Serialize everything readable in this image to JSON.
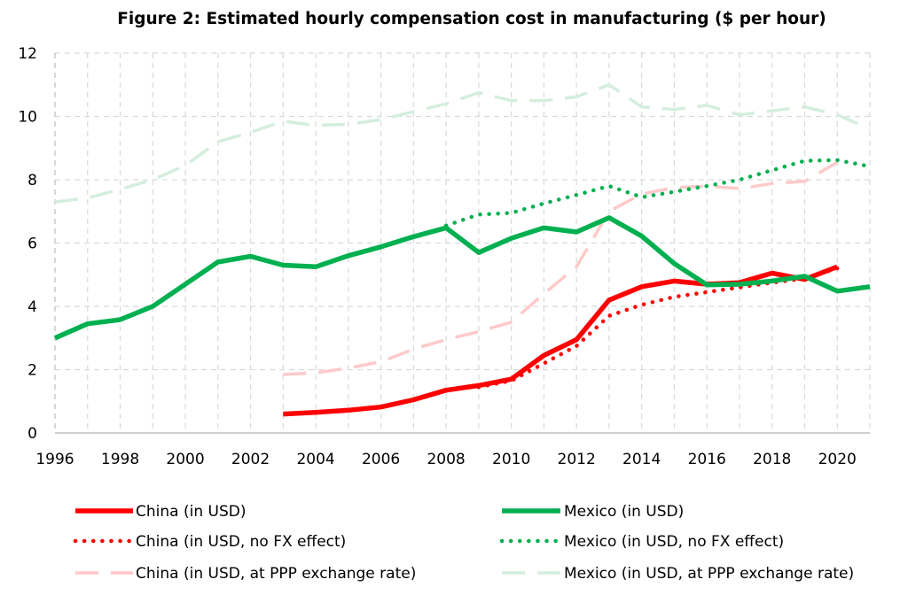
{
  "chart_data": {
    "type": "line",
    "title": "Figure 2: Estimated hourly compensation cost in manufacturing ($ per hour)",
    "xlabel": "",
    "ylabel": "",
    "xlim": [
      1996,
      2021
    ],
    "ylim": [
      0,
      12
    ],
    "x_ticks": [
      "1996",
      "1998",
      "2000",
      "2002",
      "2004",
      "2006",
      "2008",
      "2010",
      "2012",
      "2014",
      "2016",
      "2018",
      "2020"
    ],
    "y_ticks": [
      "0",
      "2",
      "4",
      "6",
      "8",
      "10",
      "12"
    ],
    "grid": true,
    "legend_position": "bottom",
    "series": [
      {
        "name": "China (in USD)",
        "color": "#ff0000",
        "style": "solid",
        "x": [
          2003,
          2004,
          2005,
          2006,
          2007,
          2008,
          2009,
          2010,
          2011,
          2012,
          2013,
          2014,
          2015,
          2016,
          2017,
          2018,
          2019,
          2020
        ],
        "y": [
          0.6,
          0.65,
          0.72,
          0.82,
          1.05,
          1.35,
          1.5,
          1.7,
          2.45,
          2.95,
          4.2,
          4.62,
          4.8,
          4.7,
          4.75,
          5.05,
          4.85,
          5.25
        ]
      },
      {
        "name": "Mexico (in USD)",
        "color": "#00b050",
        "style": "solid",
        "x": [
          1996,
          1997,
          1998,
          1999,
          2000,
          2001,
          2002,
          2003,
          2004,
          2005,
          2006,
          2007,
          2008,
          2009,
          2010,
          2011,
          2012,
          2013,
          2014,
          2015,
          2016,
          2017,
          2018,
          2019,
          2020,
          2021
        ],
        "y": [
          3.0,
          3.45,
          3.58,
          4.0,
          4.7,
          5.4,
          5.58,
          5.3,
          5.25,
          5.6,
          5.88,
          6.2,
          6.48,
          5.7,
          6.15,
          6.48,
          6.35,
          6.8,
          6.22,
          5.35,
          4.68,
          4.7,
          4.8,
          4.95,
          4.48,
          4.62
        ]
      },
      {
        "name": "China (in USD, no FX effect)",
        "color": "#ff0000",
        "style": "dotted",
        "x": [
          2009,
          2010,
          2011,
          2012,
          2013,
          2014,
          2015,
          2016,
          2017,
          2018,
          2019,
          2020
        ],
        "y": [
          1.45,
          1.65,
          2.2,
          2.75,
          3.7,
          4.05,
          4.3,
          4.45,
          4.6,
          4.75,
          4.88,
          5.2
        ]
      },
      {
        "name": "Mexico (in USD, no FX effect)",
        "color": "#00b050",
        "style": "dotted",
        "x": [
          2008,
          2009,
          2010,
          2011,
          2012,
          2013,
          2014,
          2015,
          2016,
          2017,
          2018,
          2019,
          2020,
          2021
        ],
        "y": [
          6.55,
          6.9,
          6.95,
          7.25,
          7.52,
          7.8,
          7.45,
          7.62,
          7.8,
          8.0,
          8.3,
          8.6,
          8.62,
          8.42
        ]
      },
      {
        "name": "China (in USD, at PPP exchange rate)",
        "color": "#ffc9c9",
        "style": "dashed",
        "x": [
          2003,
          2004,
          2005,
          2006,
          2007,
          2008,
          2009,
          2010,
          2011,
          2012,
          2013,
          2014,
          2015,
          2016,
          2017,
          2018,
          2019,
          2020
        ],
        "y": [
          1.85,
          1.9,
          2.05,
          2.25,
          2.65,
          2.95,
          3.2,
          3.5,
          4.4,
          5.25,
          7.0,
          7.55,
          7.75,
          7.8,
          7.72,
          7.88,
          7.95,
          8.55
        ]
      },
      {
        "name": "Mexico (in USD, at PPP exchange rate)",
        "color": "#d4eedd",
        "style": "dashed",
        "x": [
          1996,
          1997,
          1998,
          1999,
          2000,
          2001,
          2002,
          2003,
          2004,
          2005,
          2006,
          2007,
          2008,
          2009,
          2010,
          2011,
          2012,
          2013,
          2014,
          2015,
          2016,
          2017,
          2018,
          2019,
          2020,
          2021
        ],
        "y": [
          7.3,
          7.42,
          7.7,
          8.0,
          8.45,
          9.2,
          9.5,
          9.85,
          9.72,
          9.75,
          9.9,
          10.15,
          10.4,
          10.75,
          10.5,
          10.5,
          10.62,
          11.0,
          10.3,
          10.22,
          10.35,
          10.05,
          10.18,
          10.3,
          10.05,
          9.6
        ]
      }
    ]
  }
}
